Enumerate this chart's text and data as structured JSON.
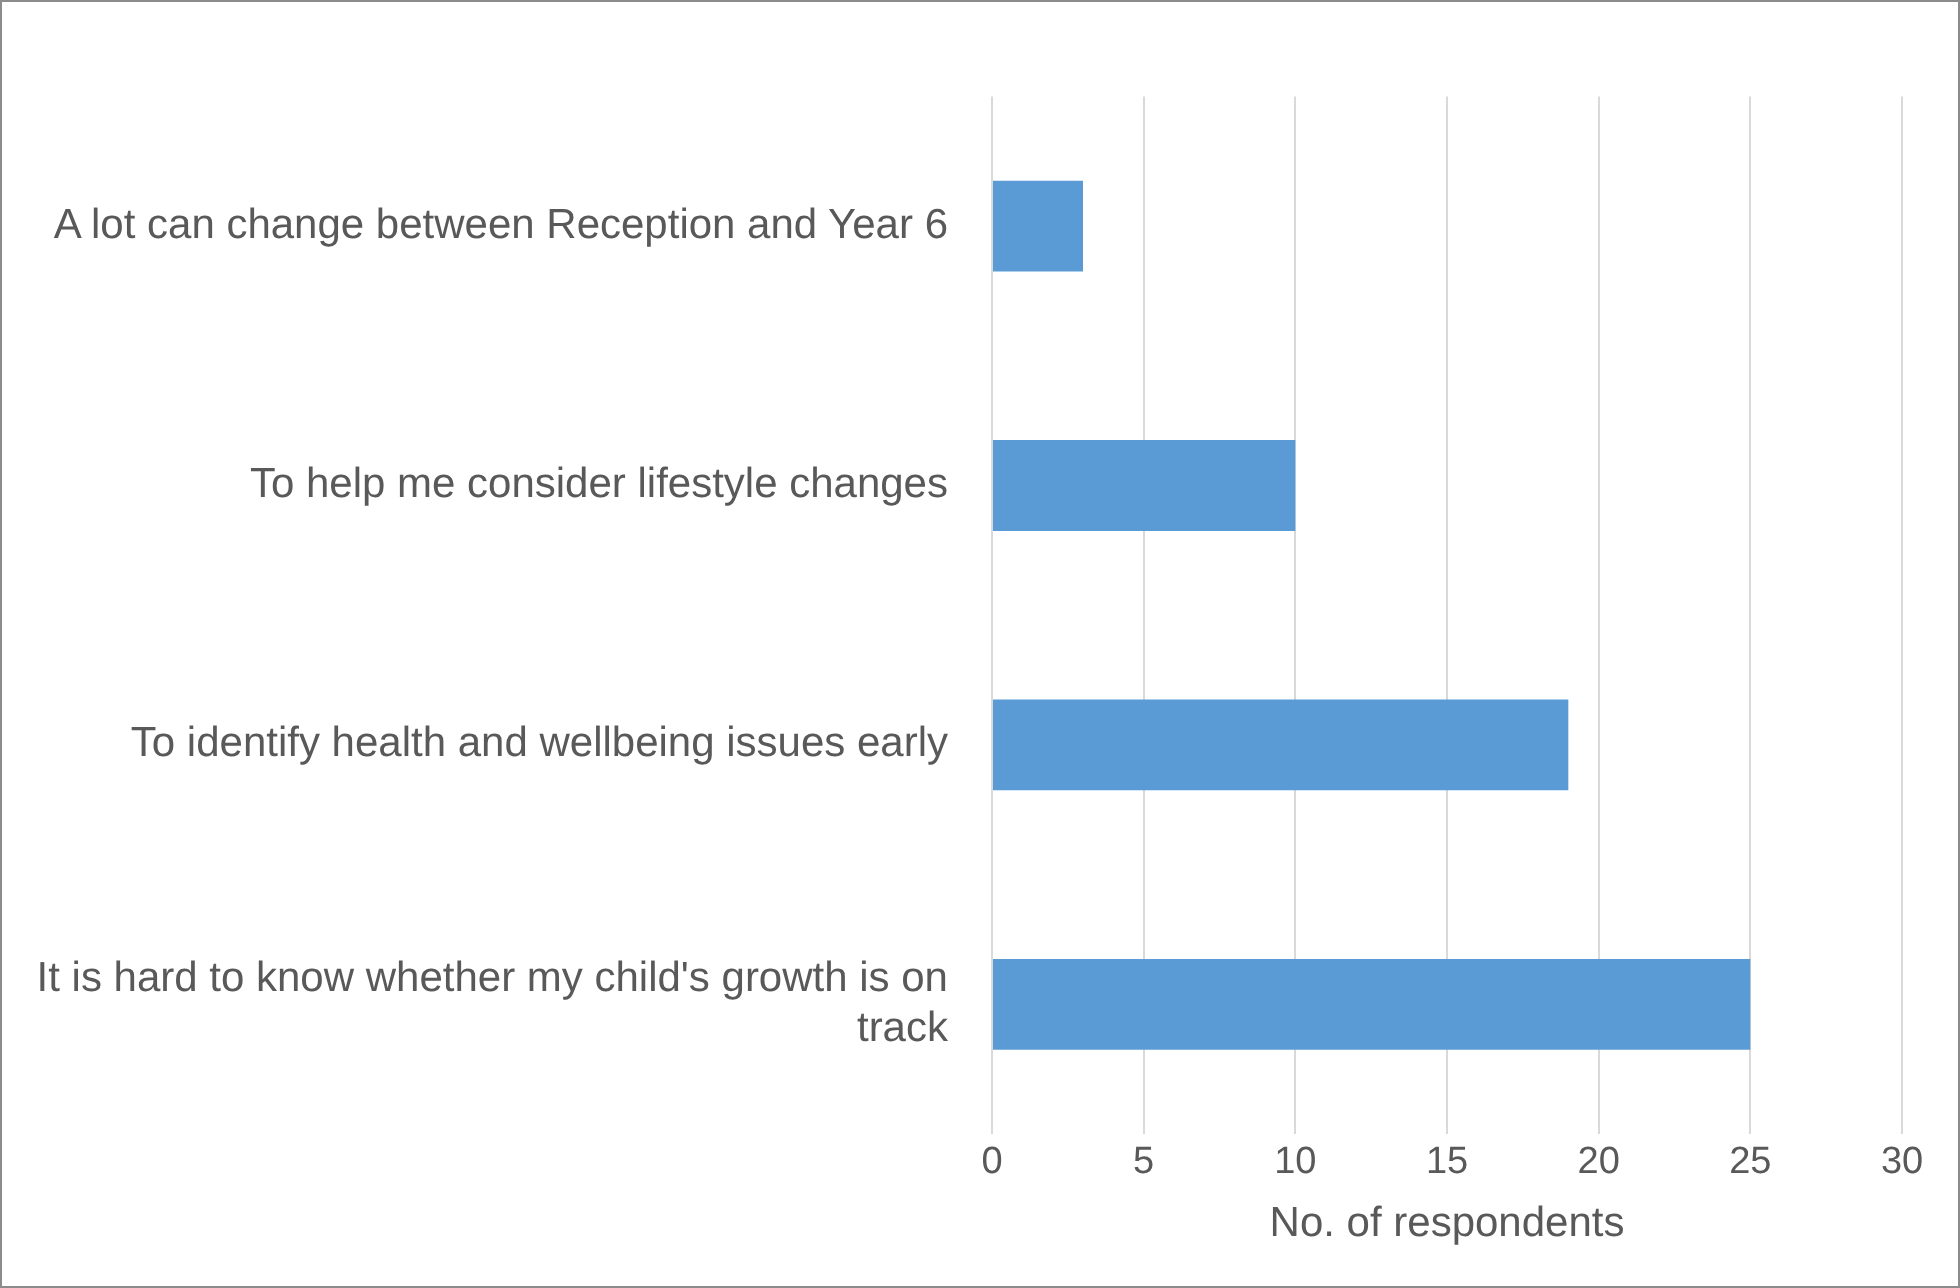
{
  "chart_data": {
    "type": "bar",
    "orientation": "horizontal",
    "xlabel": "No. of respondents",
    "categories": [
      "A lot can change between Reception and Year 6",
      "To help me consider lifestyle changes",
      "To identify health and wellbeing issues early",
      "It is hard to know whether my child's growth is on track"
    ],
    "values": [
      3,
      10,
      19,
      25
    ],
    "color": "#5b9bd5",
    "xlim": [
      0,
      30
    ],
    "xticks": [
      0,
      5,
      10,
      15,
      20,
      25,
      30
    ],
    "grid": "x"
  }
}
